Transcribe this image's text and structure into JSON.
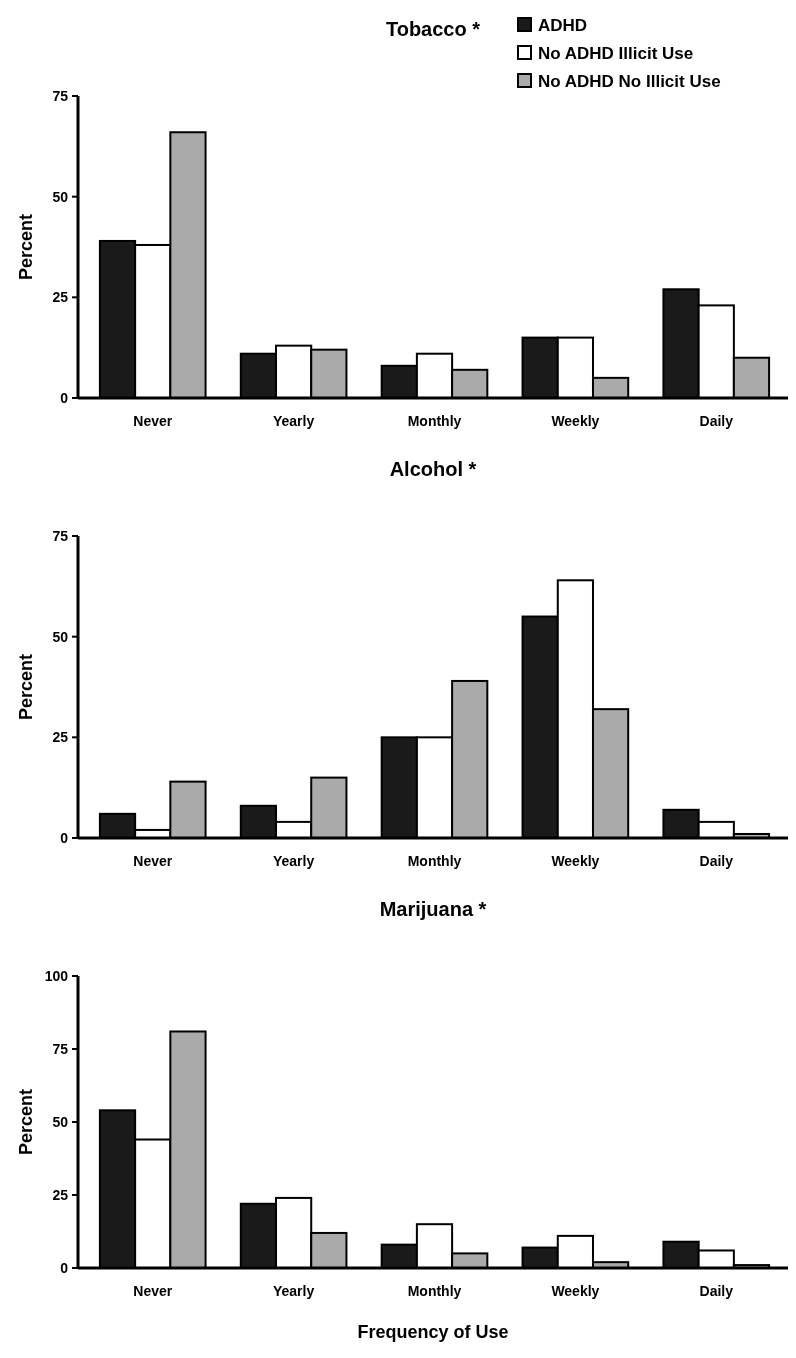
{
  "chart_data": [
    {
      "type": "bar",
      "title": "Tobacco *",
      "ylabel": "Percent",
      "categories": [
        "Never",
        "Yearly",
        "Monthly",
        "Weekly",
        "Daily"
      ],
      "ylim": [
        0,
        75
      ],
      "yticks": [
        0,
        25,
        50,
        75
      ],
      "legend": "top right",
      "series": [
        {
          "name": "ADHD",
          "color": "#1a1a1a",
          "values": [
            39,
            11,
            8,
            15,
            27
          ]
        },
        {
          "name": "No ADHD Illicit Use",
          "color": "#ffffff",
          "values": [
            38,
            13,
            11,
            15,
            23
          ]
        },
        {
          "name": "No ADHD No Illicit Use",
          "color": "#aaaaaa",
          "values": [
            66,
            12,
            7,
            5,
            10
          ]
        }
      ]
    },
    {
      "type": "bar",
      "title": "Alcohol *",
      "ylabel": "Percent",
      "categories": [
        "Never",
        "Yearly",
        "Monthly",
        "Weekly",
        "Daily"
      ],
      "ylim": [
        0,
        75
      ],
      "yticks": [
        0,
        25,
        50,
        75
      ],
      "series": [
        {
          "color": "#1a1a1a",
          "values": [
            6,
            8,
            25,
            55,
            7
          ]
        },
        {
          "color": "#ffffff",
          "values": [
            2,
            4,
            25,
            64,
            4
          ]
        },
        {
          "color": "#aaaaaa",
          "values": [
            14,
            15,
            39,
            32,
            1
          ]
        }
      ]
    },
    {
      "type": "bar",
      "title": "Marijuana *",
      "ylabel": "Percent",
      "xlabel": "Frequency of Use",
      "categories": [
        "Never",
        "Yearly",
        "Monthly",
        "Weekly",
        "Daily"
      ],
      "ylim": [
        0,
        100
      ],
      "yticks": [
        0,
        25,
        50,
        75,
        100
      ],
      "series": [
        {
          "color": "#1a1a1a",
          "values": [
            54,
            22,
            8,
            7,
            9
          ]
        },
        {
          "color": "#ffffff",
          "values": [
            44,
            24,
            15,
            11,
            6
          ]
        },
        {
          "color": "#aaaaaa",
          "values": [
            81,
            12,
            5,
            2,
            1
          ]
        }
      ]
    }
  ]
}
